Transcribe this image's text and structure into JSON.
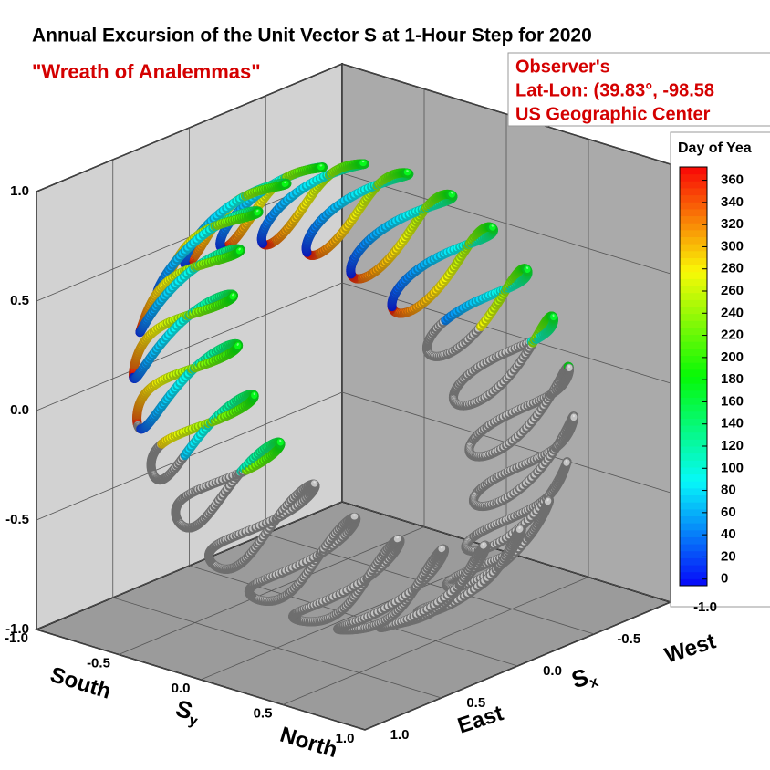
{
  "chart_data": {
    "type": "3d-tube",
    "title": "Annual Excursion of the Unit Vector S at 1-Hour Step for 2020",
    "subtitle": "\"Wreath of Analemmas\"",
    "annotation": [
      "Observer's",
      "Lat-Lon: (39.83°, -98.58",
      "US Geographic Center"
    ],
    "observer_lat": 39.83,
    "observer_lon": -98.58,
    "xlabel": "S",
    "xlabel_sub": "x",
    "ylabel": "S",
    "ylabel_sub": "y",
    "x_pos_label": "East",
    "x_neg_label": "West",
    "y_pos_label": "North",
    "y_neg_label": "South",
    "xlim": [
      -1,
      1
    ],
    "ylim": [
      -1,
      1
    ],
    "zlim": [
      -1,
      1
    ],
    "xticks": [
      {
        "value": -1,
        "label": "-1.0"
      },
      -0.5,
      {
        "value": 0,
        "label": "0.0"
      },
      0.5,
      {
        "value": 1,
        "label": "1.0"
      }
    ],
    "yticks": [
      {
        "value": -1,
        "label": "-1.0"
      },
      -0.5,
      {
        "value": 0,
        "label": "0.0"
      },
      0.5,
      {
        "value": 1,
        "label": "1.0"
      }
    ],
    "zticks": [
      {
        "value": -1,
        "label": "-1.0"
      },
      -0.5,
      {
        "value": 0,
        "label": "0.0"
      },
      0.5,
      {
        "value": 1,
        "label": "1.0"
      }
    ],
    "grid": true,
    "colorbar": {
      "title": "Day of Yea",
      "lim": [
        -6,
        372
      ],
      "ticks": [
        0,
        20,
        40,
        60,
        80,
        100,
        120,
        140,
        160,
        180,
        200,
        220,
        240,
        260,
        280,
        300,
        320,
        340,
        360
      ]
    }
  }
}
